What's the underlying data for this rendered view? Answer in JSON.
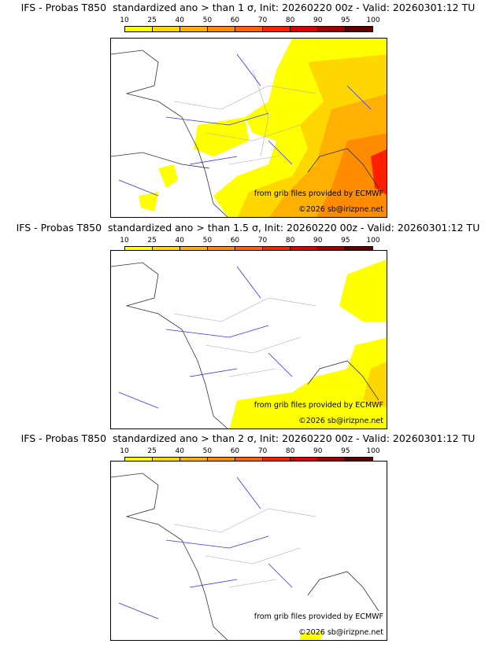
{
  "colorbar": {
    "ticks": [
      "10",
      "25",
      "40",
      "50",
      "60",
      "70",
      "80",
      "90",
      "95",
      "100"
    ],
    "colors": [
      "#ffff00",
      "#ffd700",
      "#ffb000",
      "#ff8c00",
      "#ff6400",
      "#ff2000",
      "#dd0000",
      "#a00000",
      "#600000"
    ]
  },
  "panels": [
    {
      "title": "IFS - Probas T850  standardized ano > than 1 σ, Init: 20260220 00z - Valid: 20260301:12 TU",
      "credit": "from grib files provided by ECMWF",
      "copyright": "©2026 sb@irizpne.net"
    },
    {
      "title": "IFS - Probas T850  standardized ano > than 1.5 σ, Init: 20260220 00z - Valid: 20260301:12 TU",
      "credit": "from grib files provided by ECMWF",
      "copyright": "©2026 sb@irizpne.net"
    },
    {
      "title": "IFS - Probas T850  standardized ano > than 2 σ, Init: 20260220 00z - Valid: 20260301:12 TU",
      "credit": "from grib files provided by ECMWF",
      "copyright": "©2026 sb@irizpne.net"
    }
  ]
}
